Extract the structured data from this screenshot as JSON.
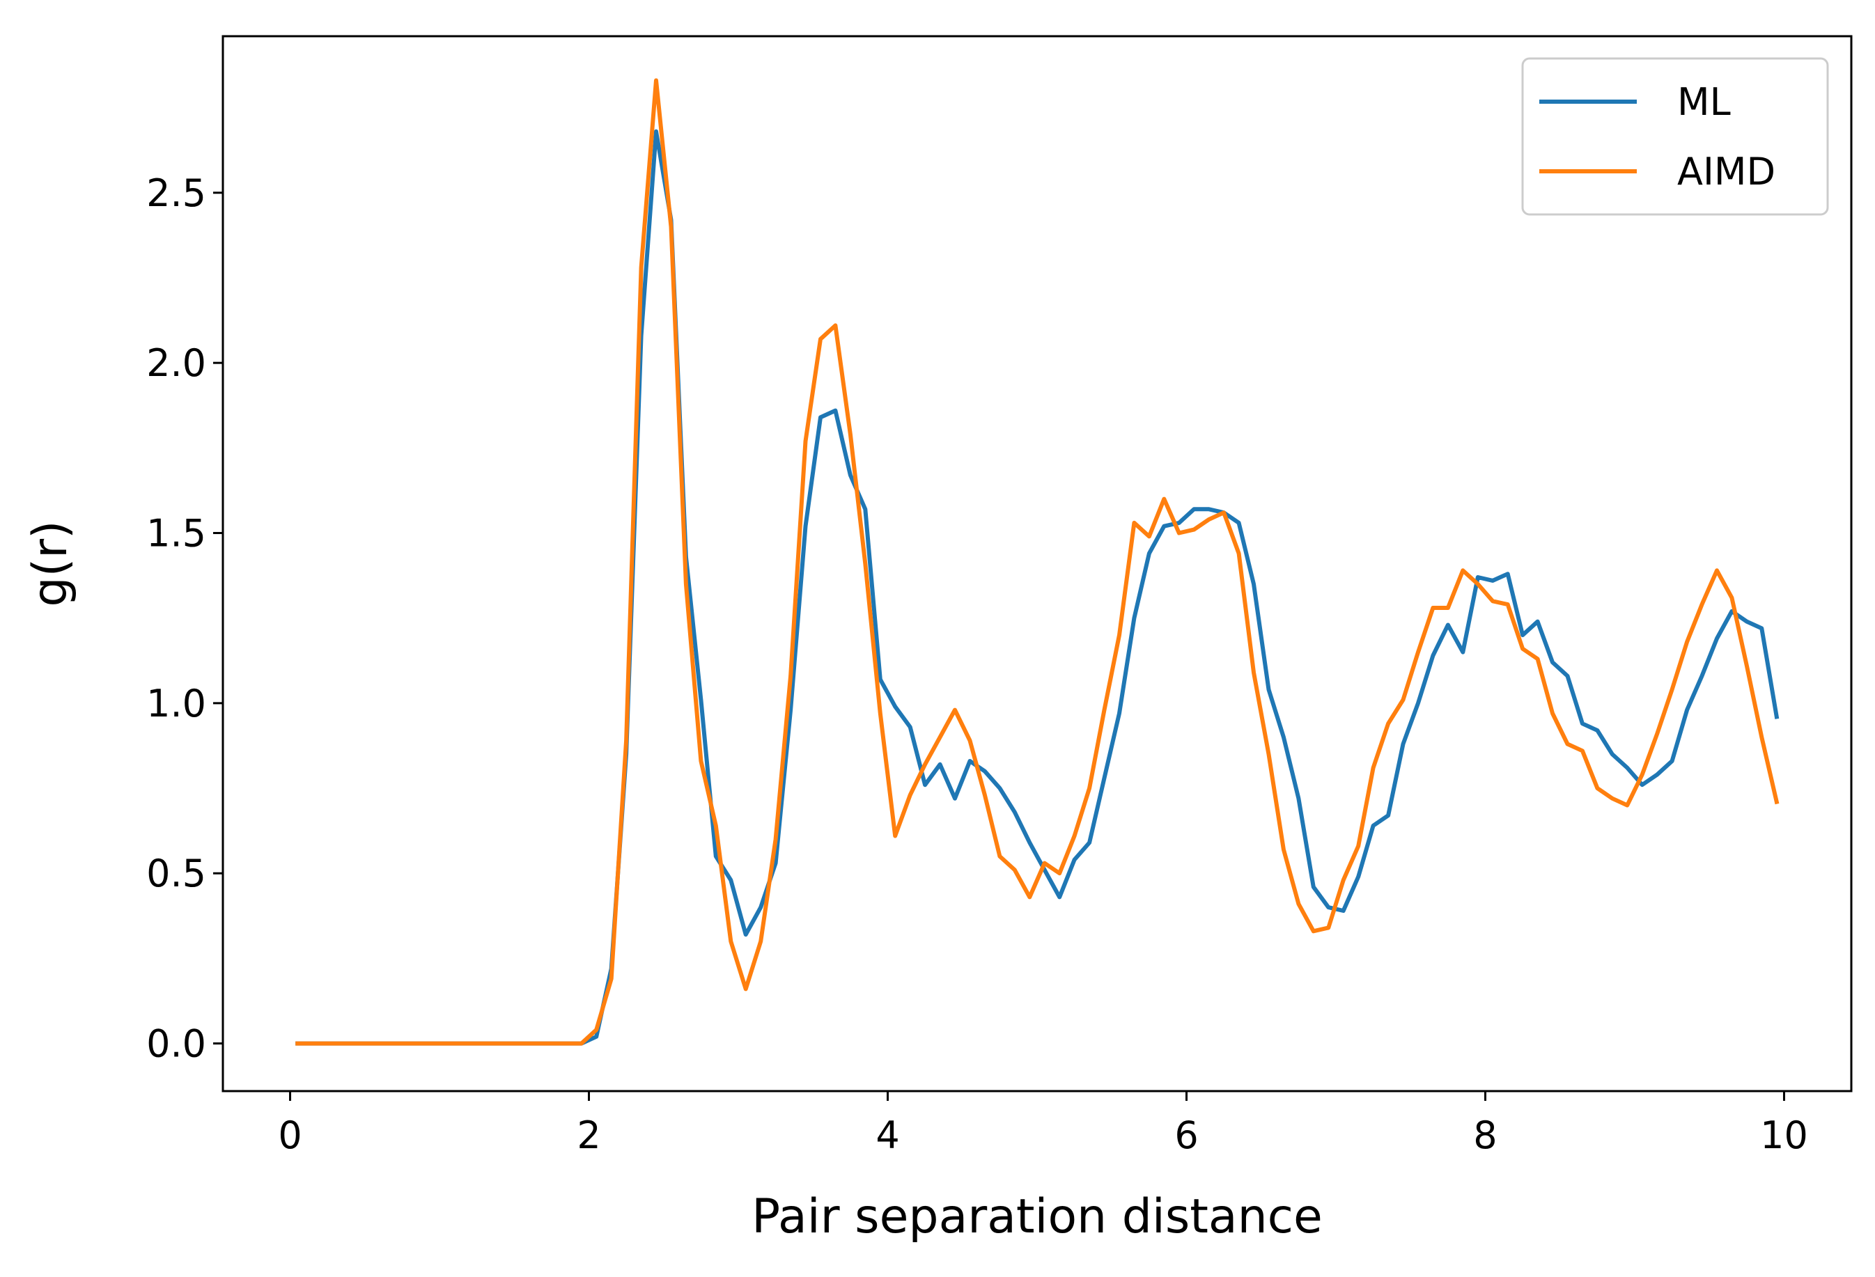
{
  "chart_data": {
    "type": "line",
    "xlabel": "Pair separation distance",
    "ylabel": "g(r)",
    "xlim": [
      -0.45,
      10.45
    ],
    "ylim": [
      -0.14,
      2.96
    ],
    "xticks": [
      {
        "value": 0,
        "label": "0"
      },
      {
        "value": 2,
        "label": "2"
      },
      {
        "value": 4,
        "label": "4"
      },
      {
        "value": 6,
        "label": "6"
      },
      {
        "value": 8,
        "label": "8"
      },
      {
        "value": 10,
        "label": "10"
      }
    ],
    "yticks": [
      {
        "value": 0.0,
        "label": "0.0"
      },
      {
        "value": 0.5,
        "label": "0.5"
      },
      {
        "value": 1.0,
        "label": "1.0"
      },
      {
        "value": 1.5,
        "label": "1.5"
      },
      {
        "value": 2.0,
        "label": "2.0"
      },
      {
        "value": 2.5,
        "label": "2.5"
      }
    ],
    "grid": false,
    "legend": {
      "position": "upper right"
    },
    "x": [
      0.05,
      0.15,
      0.25,
      0.35,
      0.45,
      0.55,
      0.65,
      0.75,
      0.85,
      0.95,
      1.05,
      1.15,
      1.25,
      1.35,
      1.45,
      1.55,
      1.65,
      1.75,
      1.85,
      1.95,
      2.05,
      2.15,
      2.25,
      2.35,
      2.45,
      2.55,
      2.65,
      2.75,
      2.85,
      2.95,
      3.05,
      3.15,
      3.25,
      3.35,
      3.45,
      3.55,
      3.65,
      3.75,
      3.85,
      3.95,
      4.05,
      4.15,
      4.25,
      4.35,
      4.45,
      4.55,
      4.65,
      4.75,
      4.85,
      4.95,
      5.05,
      5.15,
      5.25,
      5.35,
      5.45,
      5.55,
      5.65,
      5.75,
      5.85,
      5.95,
      6.05,
      6.15,
      6.25,
      6.35,
      6.45,
      6.55,
      6.65,
      6.75,
      6.85,
      6.95,
      7.05,
      7.15,
      7.25,
      7.35,
      7.45,
      7.55,
      7.65,
      7.75,
      7.85,
      7.95,
      8.05,
      8.15,
      8.25,
      8.35,
      8.45,
      8.55,
      8.65,
      8.75,
      8.85,
      8.95,
      9.05,
      9.15,
      9.25,
      9.35,
      9.45,
      9.55,
      9.65,
      9.75,
      9.85,
      9.95
    ],
    "series": [
      {
        "name": "ML",
        "color": "#1f77b4",
        "values": [
          0,
          0,
          0,
          0,
          0,
          0,
          0,
          0,
          0,
          0,
          0,
          0,
          0,
          0,
          0,
          0,
          0,
          0,
          0,
          0,
          0.02,
          0.22,
          0.85,
          2.08,
          2.68,
          2.42,
          1.43,
          1.01,
          0.55,
          0.48,
          0.32,
          0.4,
          0.53,
          0.98,
          1.52,
          1.84,
          1.86,
          1.67,
          1.57,
          1.07,
          0.99,
          0.93,
          0.76,
          0.82,
          0.72,
          0.83,
          0.8,
          0.75,
          0.68,
          0.59,
          0.51,
          0.43,
          0.54,
          0.59,
          0.78,
          0.97,
          1.25,
          1.44,
          1.52,
          1.53,
          1.57,
          1.57,
          1.56,
          1.53,
          1.35,
          1.04,
          0.9,
          0.72,
          0.46,
          0.4,
          0.39,
          0.49,
          0.64,
          0.67,
          0.88,
          1.0,
          1.14,
          1.23,
          1.15,
          1.37,
          1.36,
          1.38,
          1.2,
          1.24,
          1.12,
          1.08,
          0.94,
          0.92,
          0.85,
          0.81,
          0.76,
          0.79,
          0.83,
          0.98,
          1.08,
          1.19,
          1.27,
          1.24,
          1.22,
          0.96
        ]
      },
      {
        "name": "AIMD",
        "color": "#ff7f0e",
        "values": [
          0,
          0,
          0,
          0,
          0,
          0,
          0,
          0,
          0,
          0,
          0,
          0,
          0,
          0,
          0,
          0,
          0,
          0,
          0,
          0,
          0.04,
          0.19,
          0.89,
          2.28,
          2.83,
          2.4,
          1.35,
          0.83,
          0.64,
          0.3,
          0.16,
          0.3,
          0.6,
          1.08,
          1.77,
          2.07,
          2.11,
          1.79,
          1.41,
          0.97,
          0.61,
          0.73,
          0.82,
          0.9,
          0.98,
          0.89,
          0.73,
          0.55,
          0.51,
          0.43,
          0.53,
          0.5,
          0.61,
          0.75,
          0.98,
          1.2,
          1.53,
          1.49,
          1.6,
          1.5,
          1.51,
          1.54,
          1.56,
          1.44,
          1.09,
          0.85,
          0.57,
          0.41,
          0.33,
          0.34,
          0.48,
          0.58,
          0.81,
          0.94,
          1.01,
          1.15,
          1.28,
          1.28,
          1.39,
          1.35,
          1.3,
          1.29,
          1.16,
          1.13,
          0.97,
          0.88,
          0.86,
          0.75,
          0.72,
          0.7,
          0.79,
          0.91,
          1.04,
          1.18,
          1.29,
          1.39,
          1.31,
          1.11,
          0.9,
          0.71
        ]
      }
    ]
  }
}
